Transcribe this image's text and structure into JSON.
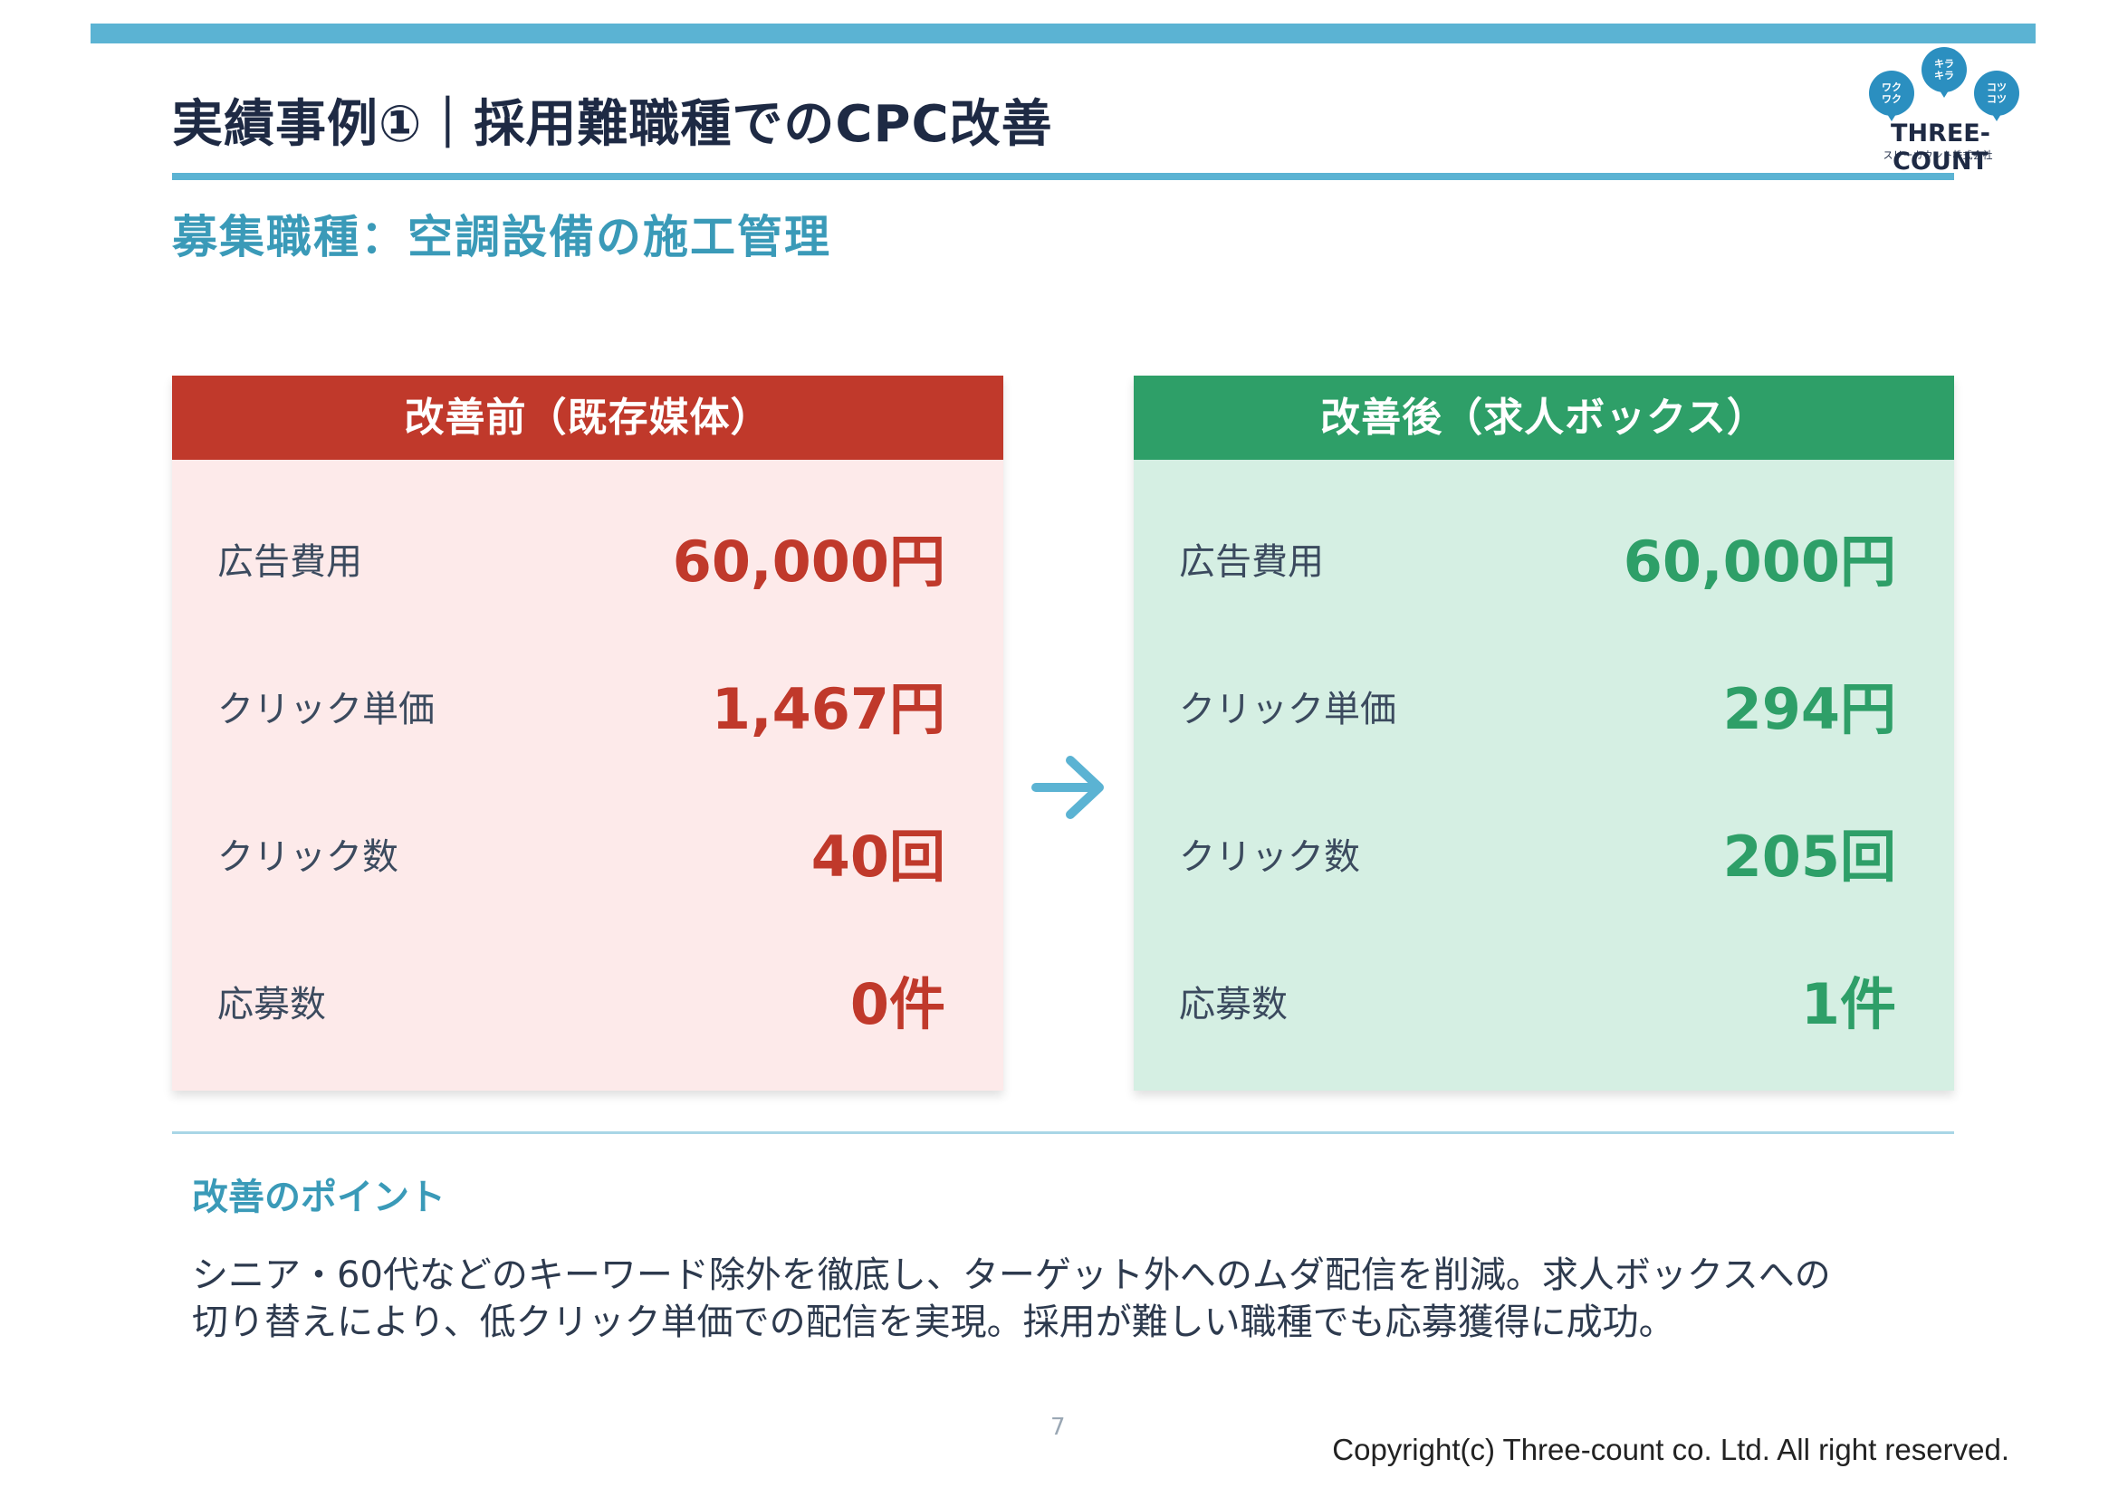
{
  "header": {
    "title": "実績事例①｜採用難職種でのCPC改善",
    "subtitle": "募集職種：空調設備の施工管理"
  },
  "logo": {
    "bubbles": [
      "ワク\nワク",
      "キラ\nキラ",
      "コツ\nコツ"
    ],
    "name": "THREE-COUNT",
    "sub": "スリーカウント株式会社"
  },
  "before": {
    "header": "改善前（既存媒体）",
    "rows": [
      {
        "label": "広告費用",
        "value": "60,000円"
      },
      {
        "label": "クリック単価",
        "value": "1,467円"
      },
      {
        "label": "クリック数",
        "value": "40回"
      },
      {
        "label": "応募数",
        "value": "0件"
      }
    ]
  },
  "after": {
    "header": "改善後（求人ボックス）",
    "rows": [
      {
        "label": "広告費用",
        "value": "60,000円"
      },
      {
        "label": "クリック単価",
        "value": "294円"
      },
      {
        "label": "クリック数",
        "value": "205回"
      },
      {
        "label": "応募数",
        "value": "1件"
      }
    ]
  },
  "point": {
    "heading": "改善のポイント",
    "lines": [
      "シニア・60代などのキーワード除外を徹底し、ターゲット外へのムダ配信を削減。求人ボックスへの",
      "切り替えにより、低クリック単価での配信を実現。採用が難しい職種でも応募獲得に成功。"
    ]
  },
  "footer": {
    "page_number": "7",
    "copyright": "Copyright(c) Three-count co. Ltd. All right reserved."
  },
  "colors": {
    "accent": "#5bb3d3",
    "before": "#c0392b",
    "before_bg": "#fdeaea",
    "after": "#2e9f68",
    "after_bg": "#d5efe3"
  }
}
